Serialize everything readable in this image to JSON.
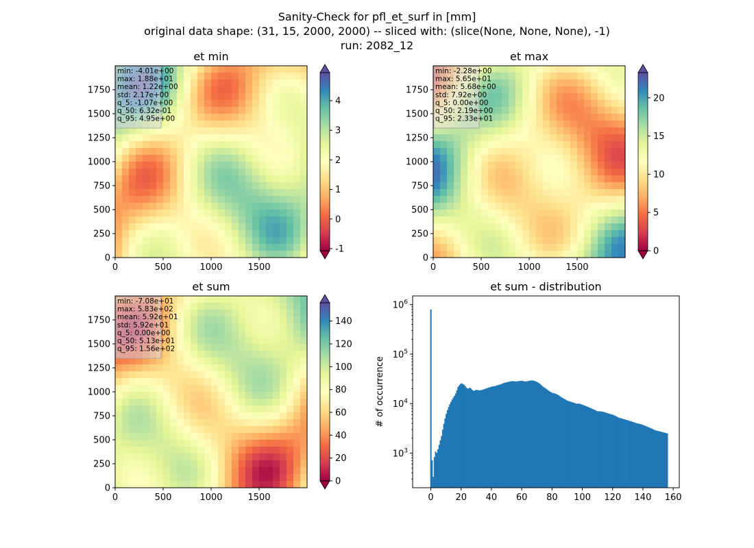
{
  "figure": {
    "title_lines": [
      "Sanity-Check for pfl_et_surf in [mm]",
      "original data shape: (31, 15, 2000, 2000) -- sliced with: (slice(None, None, None), -1)",
      "run: 2082_12"
    ]
  },
  "colormap": "Spectral",
  "chart_data": [
    {
      "type": "heatmap",
      "title": "et min",
      "xlim": [
        0,
        2000
      ],
      "ylim": [
        0,
        2000
      ],
      "xticks": [
        0,
        500,
        1000,
        1500
      ],
      "yticks": [
        0,
        250,
        500,
        750,
        1000,
        1250,
        1500,
        1750
      ],
      "colorbar": {
        "vmin": -1.07,
        "vmax": 4.95,
        "ticks": [
          -1,
          0,
          1,
          2,
          3,
          4
        ],
        "extend": "both"
      },
      "stats": [
        "min: -4.01e+00",
        "max: 1.88e+01",
        "mean: 1.22e+00",
        "std: 2.17e+00",
        "q_5: -1.07e+00",
        "q_50: 6.32e-01",
        "q_95: 4.95e+00"
      ]
    },
    {
      "type": "heatmap",
      "title": "et max",
      "xlim": [
        0,
        2000
      ],
      "ylim": [
        0,
        2000
      ],
      "xticks": [
        0,
        500,
        1000,
        1500
      ],
      "yticks": [
        0,
        250,
        500,
        750,
        1000,
        1250,
        1500,
        1750
      ],
      "colorbar": {
        "vmin": 0,
        "vmax": 23.3,
        "ticks": [
          0,
          5,
          10,
          15,
          20
        ],
        "extend": "both"
      },
      "stats": [
        "min: -2.28e+00",
        "max: 5.65e+01",
        "mean: 5.68e+00",
        "std: 7.92e+00",
        "q_5: 0.00e+00",
        "q_50: 2.19e+00",
        "q_95: 2.33e+01"
      ]
    },
    {
      "type": "heatmap",
      "title": "et sum",
      "xlim": [
        0,
        2000
      ],
      "ylim": [
        0,
        2000
      ],
      "xticks": [
        0,
        500,
        1000,
        1500
      ],
      "yticks": [
        0,
        250,
        500,
        750,
        1000,
        1250,
        1500,
        1750
      ],
      "colorbar": {
        "vmin": 0,
        "vmax": 156,
        "ticks": [
          0,
          20,
          40,
          60,
          80,
          100,
          120,
          140
        ],
        "extend": "both"
      },
      "stats": [
        "min: -7.08e+01",
        "max: 5.83e+02",
        "mean: 5.92e+01",
        "std: 5.92e+01",
        "q_5: 0.00e+00",
        "q_50: 5.13e+01",
        "q_95: 1.56e+02"
      ]
    },
    {
      "type": "bar",
      "title": "et sum - distribution",
      "xlabel": "",
      "ylabel": "# of occurrence",
      "yscale": "log",
      "xlim": [
        -12,
        164
      ],
      "ylim": [
        200,
        1500000
      ],
      "xticks": [
        0,
        20,
        40,
        60,
        80,
        100,
        120,
        140,
        160
      ],
      "yticks": [
        1000,
        10000,
        100000,
        1000000
      ],
      "ytick_labels": [
        "10",
        "10",
        "10",
        "10"
      ],
      "ytick_exponents": [
        "3",
        "4",
        "5",
        "6"
      ],
      "bar_color": "#1f77b4",
      "bin_width": 0.78,
      "anchors": [
        [
          0,
          800000
        ],
        [
          0.8,
          600
        ],
        [
          1.6,
          320
        ],
        [
          2.4,
          900
        ],
        [
          3.2,
          1100
        ],
        [
          4,
          1000
        ],
        [
          5,
          1300
        ],
        [
          6,
          1700
        ],
        [
          7,
          2200
        ],
        [
          8,
          3200
        ],
        [
          9,
          4500
        ],
        [
          10,
          6000
        ],
        [
          11,
          7500
        ],
        [
          12,
          9000
        ],
        [
          13,
          10500
        ],
        [
          14,
          12000
        ],
        [
          15,
          13500
        ],
        [
          16,
          15000
        ],
        [
          17,
          18000
        ],
        [
          18,
          22000
        ],
        [
          19,
          24000
        ],
        [
          20,
          26000
        ],
        [
          22,
          24000
        ],
        [
          24,
          20000
        ],
        [
          26,
          21000
        ],
        [
          28,
          18000
        ],
        [
          30,
          19000
        ],
        [
          32,
          18500
        ],
        [
          34,
          19000
        ],
        [
          36,
          20000
        ],
        [
          38,
          21000
        ],
        [
          40,
          22000
        ],
        [
          42,
          22500
        ],
        [
          44,
          23500
        ],
        [
          46,
          24500
        ],
        [
          48,
          26000
        ],
        [
          50,
          27000
        ],
        [
          52,
          28000
        ],
        [
          54,
          28500
        ],
        [
          56,
          28000
        ],
        [
          58,
          28500
        ],
        [
          60,
          29000
        ],
        [
          62,
          28000
        ],
        [
          64,
          28500
        ],
        [
          66,
          29500
        ],
        [
          68,
          29000
        ],
        [
          70,
          27500
        ],
        [
          72,
          25000
        ],
        [
          74,
          22000
        ],
        [
          76,
          20000
        ],
        [
          78,
          18000
        ],
        [
          80,
          16500
        ],
        [
          82,
          16000
        ],
        [
          84,
          15000
        ],
        [
          86,
          13500
        ],
        [
          88,
          12500
        ],
        [
          90,
          11500
        ],
        [
          92,
          11000
        ],
        [
          94,
          10500
        ],
        [
          96,
          10000
        ],
        [
          98,
          10000
        ],
        [
          100,
          9500
        ],
        [
          102,
          9000
        ],
        [
          104,
          8500
        ],
        [
          106,
          8000
        ],
        [
          108,
          7500
        ],
        [
          110,
          7000
        ],
        [
          112,
          7000
        ],
        [
          114,
          6800
        ],
        [
          116,
          6500
        ],
        [
          118,
          6200
        ],
        [
          120,
          6000
        ],
        [
          122,
          5600
        ],
        [
          124,
          5200
        ],
        [
          126,
          5000
        ],
        [
          128,
          4800
        ],
        [
          130,
          4600
        ],
        [
          132,
          4400
        ],
        [
          134,
          4200
        ],
        [
          136,
          4000
        ],
        [
          138,
          3900
        ],
        [
          140,
          3700
        ],
        [
          142,
          3500
        ],
        [
          144,
          3300
        ],
        [
          146,
          3100
        ],
        [
          148,
          2900
        ],
        [
          150,
          2800
        ],
        [
          152,
          2700
        ],
        [
          154,
          2600
        ],
        [
          156,
          2500
        ]
      ]
    }
  ]
}
